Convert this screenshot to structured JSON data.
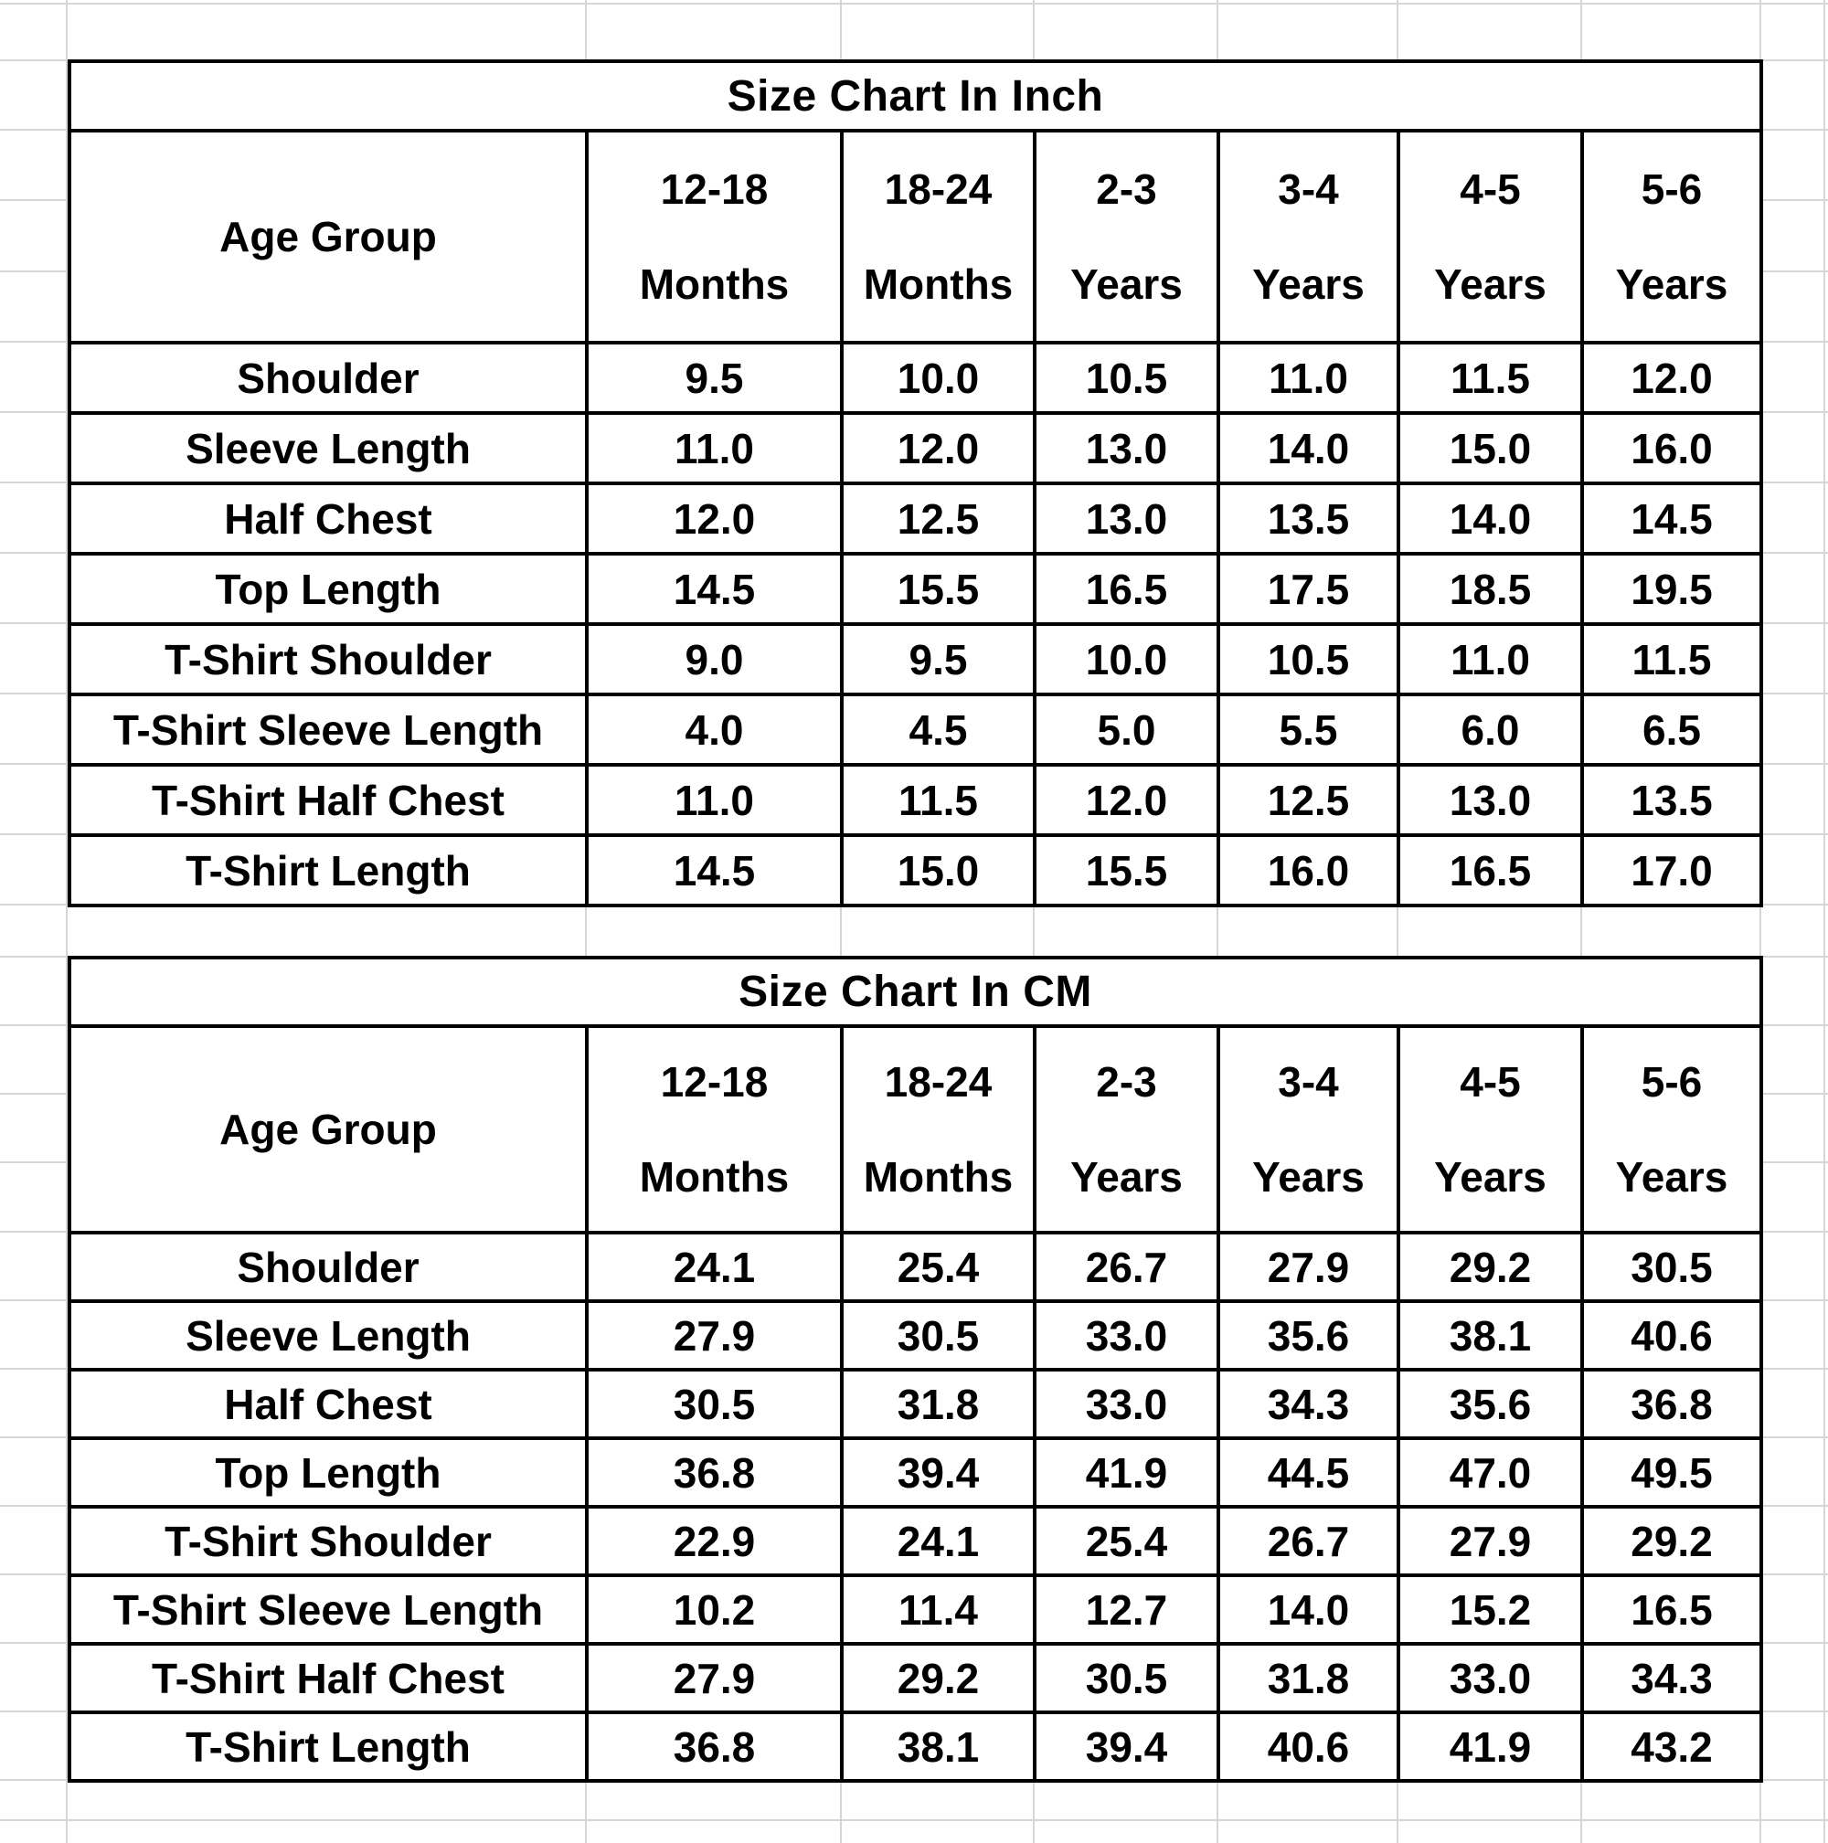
{
  "colors": {
    "cell_background": "#ffffff",
    "table_border": "#000000",
    "text": "#000000",
    "gridline": "#d6d6d6"
  },
  "tables": [
    {
      "id": "size-chart-inch",
      "title": "Size Chart In Inch",
      "header": {
        "label_column": "Age Group",
        "age_columns": [
          {
            "range": "12-18",
            "unit": "Months"
          },
          {
            "range": "18-24",
            "unit": "Months"
          },
          {
            "range": "2-3",
            "unit": "Years"
          },
          {
            "range": "3-4",
            "unit": "Years"
          },
          {
            "range": "4-5",
            "unit": "Years"
          },
          {
            "range": "5-6",
            "unit": "Years"
          }
        ]
      },
      "rows": [
        {
          "label": "Shoulder",
          "values": [
            "9.5",
            "10.0",
            "10.5",
            "11.0",
            "11.5",
            "12.0"
          ]
        },
        {
          "label": "Sleeve Length",
          "values": [
            "11.0",
            "12.0",
            "13.0",
            "14.0",
            "15.0",
            "16.0"
          ]
        },
        {
          "label": "Half Chest",
          "values": [
            "12.0",
            "12.5",
            "13.0",
            "13.5",
            "14.0",
            "14.5"
          ]
        },
        {
          "label": "Top Length",
          "values": [
            "14.5",
            "15.5",
            "16.5",
            "17.5",
            "18.5",
            "19.5"
          ]
        },
        {
          "label": "T-Shirt Shoulder",
          "values": [
            "9.0",
            "9.5",
            "10.0",
            "10.5",
            "11.0",
            "11.5"
          ]
        },
        {
          "label": "T-Shirt Sleeve Length",
          "values": [
            "4.0",
            "4.5",
            "5.0",
            "5.5",
            "6.0",
            "6.5"
          ]
        },
        {
          "label": "T-Shirt Half Chest",
          "values": [
            "11.0",
            "11.5",
            "12.0",
            "12.5",
            "13.0",
            "13.5"
          ]
        },
        {
          "label": "T-Shirt Length",
          "values": [
            "14.5",
            "15.0",
            "15.5",
            "16.0",
            "16.5",
            "17.0"
          ]
        }
      ]
    },
    {
      "id": "size-chart-cm",
      "title": "Size Chart In CM",
      "header": {
        "label_column": "Age Group",
        "age_columns": [
          {
            "range": "12-18",
            "unit": "Months"
          },
          {
            "range": "18-24",
            "unit": "Months"
          },
          {
            "range": "2-3",
            "unit": "Years"
          },
          {
            "range": "3-4",
            "unit": "Years"
          },
          {
            "range": "4-5",
            "unit": "Years"
          },
          {
            "range": "5-6",
            "unit": "Years"
          }
        ]
      },
      "rows": [
        {
          "label": "Shoulder",
          "values": [
            "24.1",
            "25.4",
            "26.7",
            "27.9",
            "29.2",
            "30.5"
          ]
        },
        {
          "label": "Sleeve Length",
          "values": [
            "27.9",
            "30.5",
            "33.0",
            "35.6",
            "38.1",
            "40.6"
          ]
        },
        {
          "label": "Half Chest",
          "values": [
            "30.5",
            "31.8",
            "33.0",
            "34.3",
            "35.6",
            "36.8"
          ]
        },
        {
          "label": "Top Length",
          "values": [
            "36.8",
            "39.4",
            "41.9",
            "44.5",
            "47.0",
            "49.5"
          ]
        },
        {
          "label": "T-Shirt Shoulder",
          "values": [
            "22.9",
            "24.1",
            "25.4",
            "26.7",
            "27.9",
            "29.2"
          ]
        },
        {
          "label": "T-Shirt Sleeve Length",
          "values": [
            "10.2",
            "11.4",
            "12.7",
            "14.0",
            "15.2",
            "16.5"
          ]
        },
        {
          "label": "T-Shirt Half Chest",
          "values": [
            "27.9",
            "29.2",
            "30.5",
            "31.8",
            "33.0",
            "34.3"
          ]
        },
        {
          "label": "T-Shirt Length",
          "values": [
            "36.8",
            "38.1",
            "39.4",
            "40.6",
            "41.9",
            "43.2"
          ]
        }
      ]
    }
  ]
}
